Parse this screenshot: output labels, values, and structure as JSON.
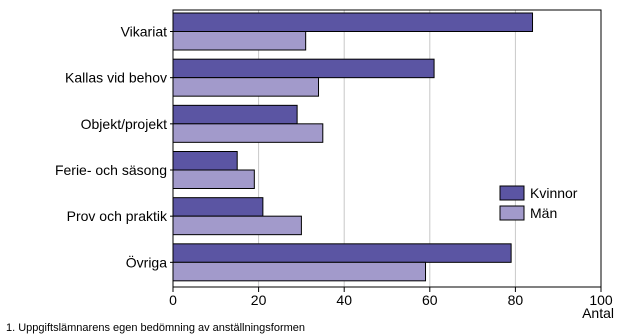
{
  "chart_data": {
    "type": "bar",
    "orientation": "horizontal",
    "categories": [
      "Vikariat",
      "Kallas vid behov",
      "Objekt/projekt",
      "Ferie- och säsong",
      "Prov och praktik",
      "Övriga"
    ],
    "series": [
      {
        "name": "Kvinnor",
        "color": "#5b55a3",
        "values": [
          84,
          61,
          29,
          15,
          21,
          79
        ]
      },
      {
        "name": "Män",
        "color": "#a29acb",
        "values": [
          31,
          34,
          35,
          19,
          30,
          59
        ]
      }
    ],
    "xlabel": "Antal",
    "xlim": [
      0,
      100
    ],
    "xticks": [
      0,
      20,
      40,
      60,
      80,
      100
    ],
    "grid": "vertical",
    "legend_position": "right"
  },
  "footnote": "1. Uppgiftslämnarens egen bedömning av anställningsformen"
}
